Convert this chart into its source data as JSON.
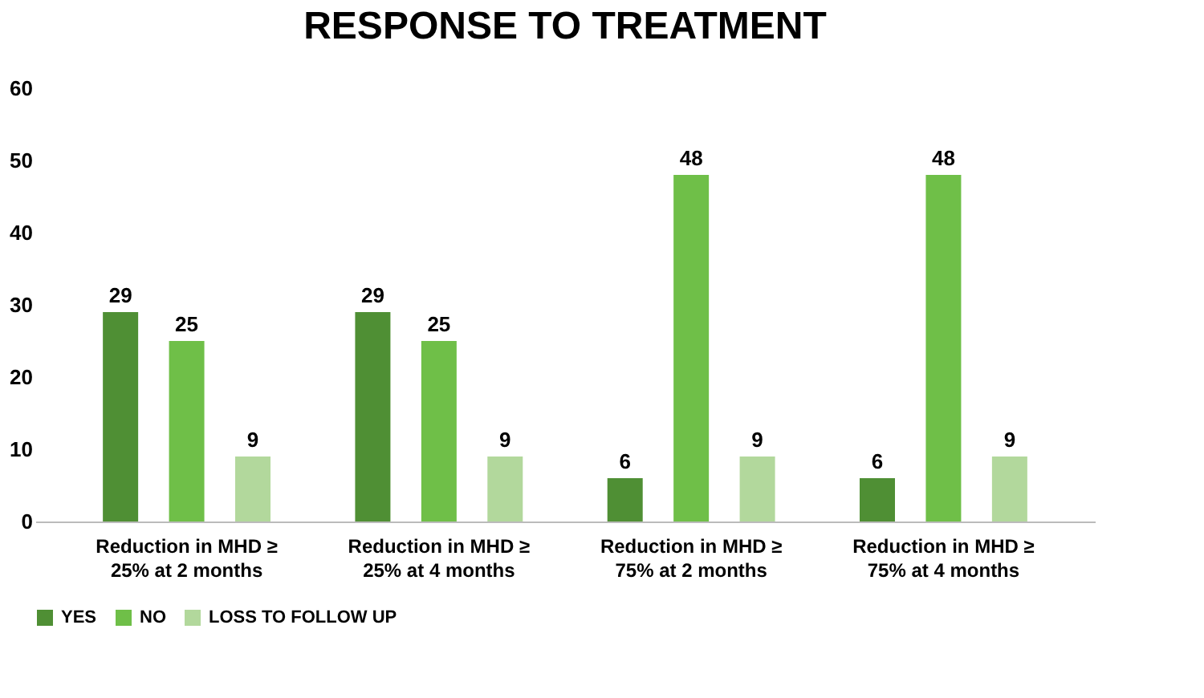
{
  "chart_data": {
    "type": "bar",
    "title": "RESPONSE TO TREATMENT",
    "categories": [
      "Reduction in MHD ≥ 25% at 2 months",
      "Reduction in MHD ≥ 25% at 4 months",
      "Reduction in MHD ≥ 75% at 2 months",
      "Reduction in MHD ≥ 75% at 4 months"
    ],
    "series": [
      {
        "name": "YES",
        "color": "#4f8f34",
        "values": [
          29,
          29,
          6,
          6
        ]
      },
      {
        "name": "NO",
        "color": "#6fbf48",
        "values": [
          25,
          25,
          48,
          48
        ]
      },
      {
        "name": "LOSS TO FOLLOW UP",
        "color": "#b2d89c",
        "values": [
          9,
          9,
          9,
          9
        ]
      }
    ],
    "ylim": [
      0,
      60
    ],
    "yticks": [
      0,
      10,
      20,
      30,
      40,
      50,
      60
    ],
    "grid": false,
    "legend": "bottom",
    "data_labels": true
  }
}
